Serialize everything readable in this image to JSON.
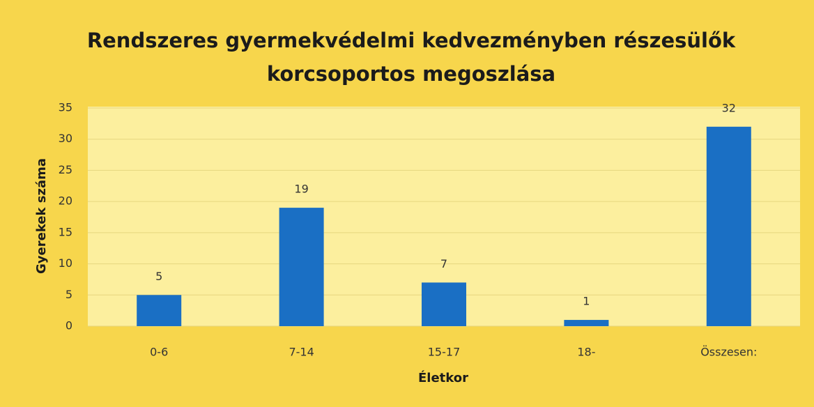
{
  "chart_data": {
    "type": "bar",
    "title": [
      "Rendszeres gyermekvédelmi kedvezményben részesülők",
      "korcsoportos megoszlása"
    ],
    "x_label": "Életkor",
    "y_label": "Gyerekek száma",
    "categories": [
      "0-6",
      "7-14",
      "15-17",
      "18-",
      "Összesen:"
    ],
    "values": [
      5,
      19,
      7,
      1,
      32
    ],
    "color": "#1a6fc4",
    "ylim": [
      0,
      35
    ],
    "yticks": [
      0,
      5,
      10,
      15,
      20,
      25,
      30,
      35
    ],
    "grid": true
  }
}
